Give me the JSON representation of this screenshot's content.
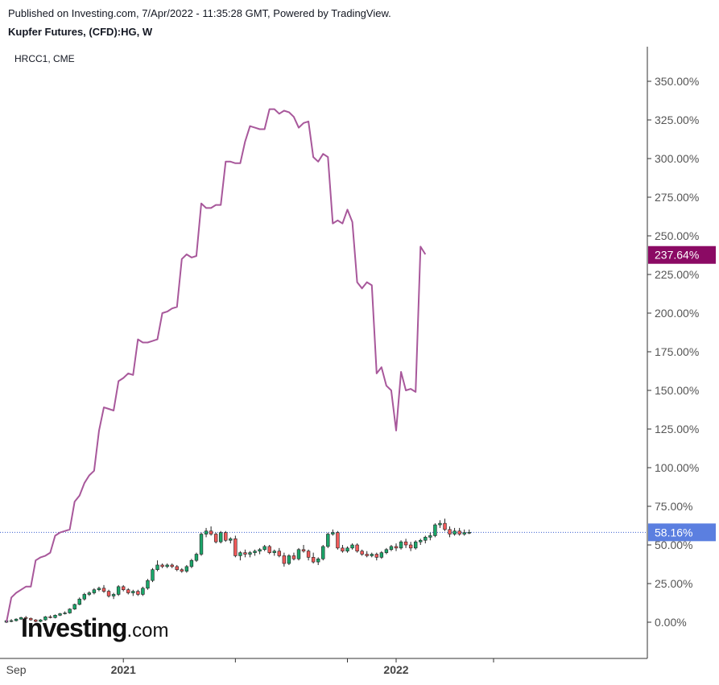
{
  "header": {
    "published": "Published on Investing.com, 7/Apr/2022 - 11:35:28 GMT, Powered by TradingView.",
    "title": "Kupfer Futures, (CFD):HG, W",
    "overlay_label": "HRCC1, CME"
  },
  "logo": {
    "main": "Investing",
    "suffix": ".com"
  },
  "colors": {
    "line": "#a8589b",
    "up": "#1ba66a",
    "down": "#f05a5a",
    "line_badge": "#8b0a64",
    "price_badge": "#5b7fe0",
    "price_line": "#3a5fd0"
  },
  "chart_data": {
    "type": "line",
    "y_axis": {
      "range": [
        -15,
        370
      ],
      "ticks": [
        "0.00%",
        "25.00%",
        "50.00%",
        "75.00%",
        "100.00%",
        "125.00%",
        "150.00%",
        "175.00%",
        "200.00%",
        "225.00%",
        "250.00%",
        "275.00%",
        "300.00%",
        "325.00%",
        "350.00%"
      ],
      "tick_values": [
        0,
        25,
        50,
        75,
        100,
        125,
        150,
        175,
        200,
        225,
        250,
        275,
        300,
        325,
        350
      ]
    },
    "x_axis": {
      "labels": [
        "Sep",
        "2021",
        "2022"
      ],
      "label_weeks": [
        2,
        24,
        80
      ],
      "range_weeks": [
        0,
        115
      ]
    },
    "series": [
      {
        "kind": "line",
        "values": [
          0,
          16,
          19,
          21,
          23,
          23,
          40,
          42,
          43,
          45,
          56,
          58,
          59,
          60,
          78,
          82,
          90,
          95,
          98,
          124,
          139,
          138,
          137,
          156,
          158,
          161,
          160,
          183,
          181,
          181,
          182,
          183,
          200,
          201,
          203,
          204,
          235,
          238,
          236,
          237,
          271,
          268,
          268,
          270,
          270,
          298,
          298,
          297,
          297,
          311,
          321,
          320,
          319,
          319,
          332,
          332,
          329,
          331,
          330,
          327,
          320,
          323,
          324,
          301,
          298,
          303,
          301,
          258,
          260,
          258,
          267,
          259,
          220,
          216,
          220,
          218,
          161,
          165,
          153,
          150,
          124,
          162,
          150,
          151,
          149,
          243,
          238
        ],
        "last_value": 237.64,
        "last_label": "237.64%"
      },
      {
        "kind": "candlestick",
        "ohlc": [
          [
            0,
            1.5,
            -0.5,
            1
          ],
          [
            1,
            2,
            0,
            1
          ],
          [
            1,
            2.5,
            0.5,
            2
          ],
          [
            2,
            3.5,
            1.5,
            3
          ],
          [
            3,
            4,
            2,
            2.5
          ],
          [
            2.5,
            3,
            1,
            1.5
          ],
          [
            1.5,
            2,
            0,
            0.5
          ],
          [
            0.5,
            2,
            0,
            1.5
          ],
          [
            1.5,
            4,
            1,
            3.5
          ],
          [
            3.5,
            4.5,
            2.5,
            3
          ],
          [
            3,
            5,
            2.5,
            4.5
          ],
          [
            4.5,
            6,
            4,
            5.5
          ],
          [
            5.5,
            7,
            5,
            6
          ],
          [
            6,
            9,
            5.5,
            8.5
          ],
          [
            8.5,
            12,
            8,
            11.5
          ],
          [
            11.5,
            16,
            11,
            15
          ],
          [
            15,
            19,
            14,
            18
          ],
          [
            18,
            20,
            17,
            19
          ],
          [
            19,
            22,
            18,
            21
          ],
          [
            21,
            23,
            20,
            22
          ],
          [
            22,
            24,
            19,
            20
          ],
          [
            20,
            21,
            16,
            17
          ],
          [
            17,
            19,
            15,
            18
          ],
          [
            18,
            24,
            17,
            23
          ],
          [
            23,
            24,
            20,
            21
          ],
          [
            21,
            22,
            18,
            19
          ],
          [
            19,
            21,
            17,
            20
          ],
          [
            20,
            21,
            17,
            18
          ],
          [
            18,
            23,
            17,
            22
          ],
          [
            22,
            28,
            21,
            27
          ],
          [
            27,
            35,
            26,
            34
          ],
          [
            34,
            40,
            33,
            37
          ],
          [
            37,
            38,
            35,
            36
          ],
          [
            36,
            38,
            35,
            37
          ],
          [
            37,
            38,
            35,
            36
          ],
          [
            36,
            37,
            33,
            34
          ],
          [
            34,
            35,
            32,
            33
          ],
          [
            33,
            37,
            32,
            36
          ],
          [
            36,
            41,
            35,
            40
          ],
          [
            40,
            45,
            39,
            44
          ],
          [
            44,
            58,
            43,
            57
          ],
          [
            57,
            61,
            55,
            59
          ],
          [
            59,
            62,
            56,
            57
          ],
          [
            57,
            58,
            51,
            52
          ],
          [
            52,
            59,
            51,
            58
          ],
          [
            58,
            59,
            52,
            53
          ],
          [
            53,
            55,
            51,
            54
          ],
          [
            54,
            56,
            42,
            43
          ],
          [
            43,
            46,
            40,
            45
          ],
          [
            45,
            47,
            42,
            44
          ],
          [
            44,
            46,
            42,
            45
          ],
          [
            45,
            47,
            43,
            46
          ],
          [
            46,
            48,
            44,
            47
          ],
          [
            47,
            50,
            46,
            49
          ],
          [
            49,
            50,
            44,
            45
          ],
          [
            45,
            47,
            43,
            46
          ],
          [
            46,
            48,
            42,
            43
          ],
          [
            43,
            45,
            36,
            38
          ],
          [
            38,
            44,
            37,
            43
          ],
          [
            43,
            45,
            40,
            41
          ],
          [
            41,
            48,
            40,
            47
          ],
          [
            47,
            50,
            45,
            46
          ],
          [
            46,
            47,
            40,
            42
          ],
          [
            42,
            45,
            38,
            39
          ],
          [
            39,
            42,
            37,
            41
          ],
          [
            41,
            50,
            40,
            49
          ],
          [
            49,
            58,
            48,
            57
          ],
          [
            57,
            60,
            56,
            58
          ],
          [
            58,
            59,
            47,
            48
          ],
          [
            48,
            50,
            45,
            46
          ],
          [
            46,
            49,
            45,
            48
          ],
          [
            48,
            51,
            47,
            50
          ],
          [
            50,
            51,
            45,
            46
          ],
          [
            46,
            47,
            43,
            44
          ],
          [
            44,
            46,
            42,
            43
          ],
          [
            43,
            45,
            42,
            44
          ],
          [
            44,
            45,
            40,
            42
          ],
          [
            42,
            46,
            41,
            45
          ],
          [
            45,
            48,
            44,
            47
          ],
          [
            47,
            50,
            46,
            49
          ],
          [
            49,
            51,
            46,
            48
          ],
          [
            48,
            53,
            47,
            52
          ],
          [
            52,
            54,
            48,
            50
          ],
          [
            50,
            52,
            46,
            48
          ],
          [
            48,
            53,
            47,
            52
          ],
          [
            52,
            54,
            50,
            53
          ],
          [
            53,
            56,
            51,
            55
          ],
          [
            55,
            58,
            53,
            56
          ],
          [
            56,
            64,
            55,
            63
          ],
          [
            63,
            66,
            61,
            64
          ],
          [
            64,
            67,
            59,
            60
          ],
          [
            60,
            62,
            55,
            57
          ],
          [
            57,
            61,
            56,
            59
          ],
          [
            59,
            61,
            56,
            57
          ],
          [
            57,
            60,
            56,
            58
          ],
          [
            58,
            60,
            57,
            58.16
          ]
        ],
        "last_value": 58.16,
        "last_label": "58.16%"
      }
    ]
  }
}
